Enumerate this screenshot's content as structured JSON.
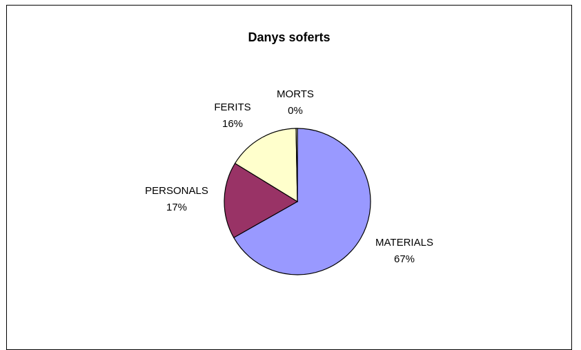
{
  "chart_data": {
    "type": "pie",
    "title": "Danys soferts",
    "slices": [
      {
        "label": "MATERIALS",
        "percent_label": "67%",
        "value": 67,
        "color": "#9999ff"
      },
      {
        "label": "PERSONALS",
        "percent_label": "17%",
        "value": 17,
        "color": "#993366"
      },
      {
        "label": "FERITS",
        "percent_label": "16%",
        "value": 16,
        "color": "#ffffcc"
      },
      {
        "label": "MORTS",
        "percent_label": "0%",
        "value": 0.3,
        "color": "#ffffcc"
      }
    ],
    "legend": "none",
    "slice_outline_color": "#000000"
  }
}
